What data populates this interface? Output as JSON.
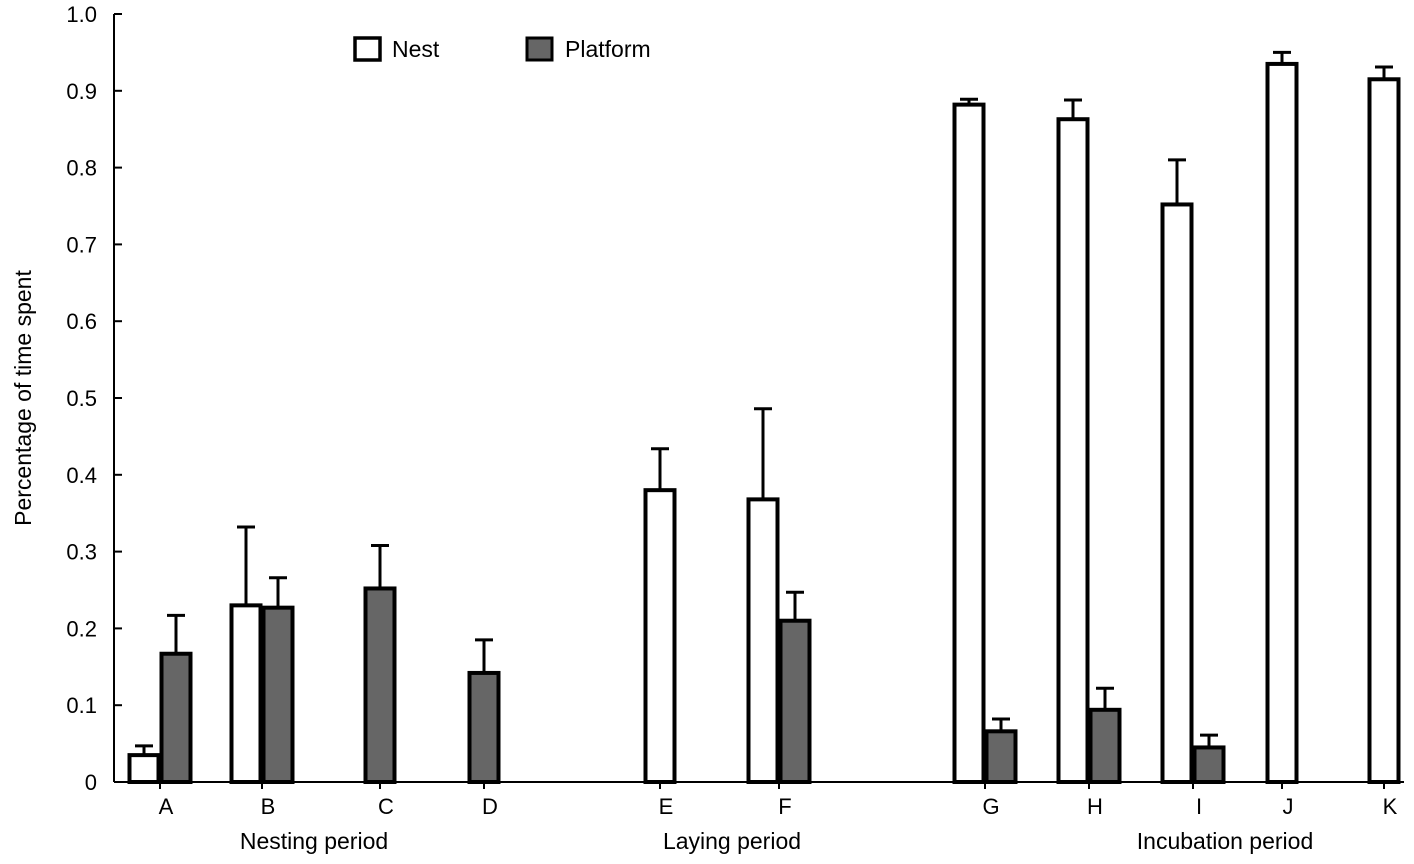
{
  "chart_data": {
    "type": "bar",
    "ylabel": "Percentage of time spent",
    "ylim": [
      0,
      1.0
    ],
    "yticks": [
      {
        "value": 0,
        "label": "0"
      },
      {
        "value": 0.1,
        "label": "0.1"
      },
      {
        "value": 0.2,
        "label": "0.2"
      },
      {
        "value": 0.3,
        "label": "0.3"
      },
      {
        "value": 0.4,
        "label": "0.4"
      },
      {
        "value": 0.5,
        "label": "0.5"
      },
      {
        "value": 0.6,
        "label": "0.6"
      },
      {
        "value": 0.7,
        "label": "0.7"
      },
      {
        "value": 0.8,
        "label": "0.8"
      },
      {
        "value": 0.9,
        "label": "0.9"
      },
      {
        "value": 1.0,
        "label": "1.0"
      }
    ],
    "categories": [
      "A",
      "B",
      "C",
      "D",
      "E",
      "F",
      "G",
      "H",
      "I",
      "J",
      "K"
    ],
    "groups": [
      {
        "label": "Nesting period",
        "categories": [
          "A",
          "B",
          "C",
          "D"
        ]
      },
      {
        "label": "Laying period",
        "categories": [
          "E",
          "F"
        ]
      },
      {
        "label": "Incubation period",
        "categories": [
          "G",
          "H",
          "I",
          "J",
          "K"
        ]
      }
    ],
    "legend_position": "top",
    "series": [
      {
        "name": "Nest",
        "fill": "#ffffff",
        "values": [
          0.035,
          0.23,
          null,
          null,
          0.38,
          0.368,
          0.882,
          0.863,
          0.752,
          0.935,
          0.915
        ],
        "errors": [
          0.012,
          0.102,
          null,
          null,
          0.054,
          0.118,
          0.007,
          0.025,
          0.058,
          0.015,
          0.016
        ]
      },
      {
        "name": "Platform",
        "fill": "#666666",
        "values": [
          0.167,
          0.227,
          0.252,
          0.142,
          null,
          0.21,
          0.066,
          0.094,
          0.045,
          null,
          null
        ],
        "errors": [
          0.05,
          0.039,
          0.056,
          0.043,
          null,
          0.037,
          0.016,
          0.028,
          0.016,
          null,
          null
        ]
      }
    ]
  }
}
